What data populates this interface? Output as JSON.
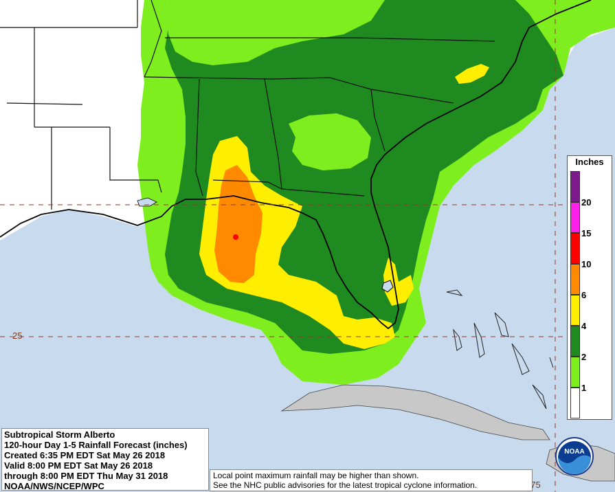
{
  "title_block": {
    "line1": "Subtropical Storm Alberto",
    "line2": "120-hour Day 1-5 Rainfall Forecast (inches)",
    "line3": "Created 6:35 PM EDT Sat May 26 2018",
    "line4": "Valid 8:00 PM EDT Sat May 26 2018",
    "line5": "through 8:00 PM EDT Thu May 31 2018",
    "line6": "NOAA/NWS/NCEP/WPC"
  },
  "notes": {
    "line1": "Local point maximum rainfall may be higher than shown.",
    "line2": "See the NHC public advisories for the latest tropical cyclone information."
  },
  "legend": {
    "title": "Inches",
    "bins": [
      {
        "label": "20",
        "color": "#7b1a8a"
      },
      {
        "label": "15",
        "color": "#ff1fe8"
      },
      {
        "label": "10",
        "color": "#ff0000"
      },
      {
        "label": "6",
        "color": "#ff8a00"
      },
      {
        "label": "4",
        "color": "#ffee00"
      },
      {
        "label": "2",
        "color": "#1f8a1f"
      },
      {
        "label": "1",
        "color": "#7fee1f"
      },
      {
        "label": "",
        "color": "#ffffff"
      }
    ]
  },
  "grid_labels": {
    "lat": "25",
    "lon": "-75"
  },
  "logo": {
    "text": "NOAA"
  },
  "colors": {
    "ocean": "#c8daee",
    "land": "#ffffff",
    "cuba": "#c8c8c8",
    "gridline": "#8b3a2a"
  }
}
